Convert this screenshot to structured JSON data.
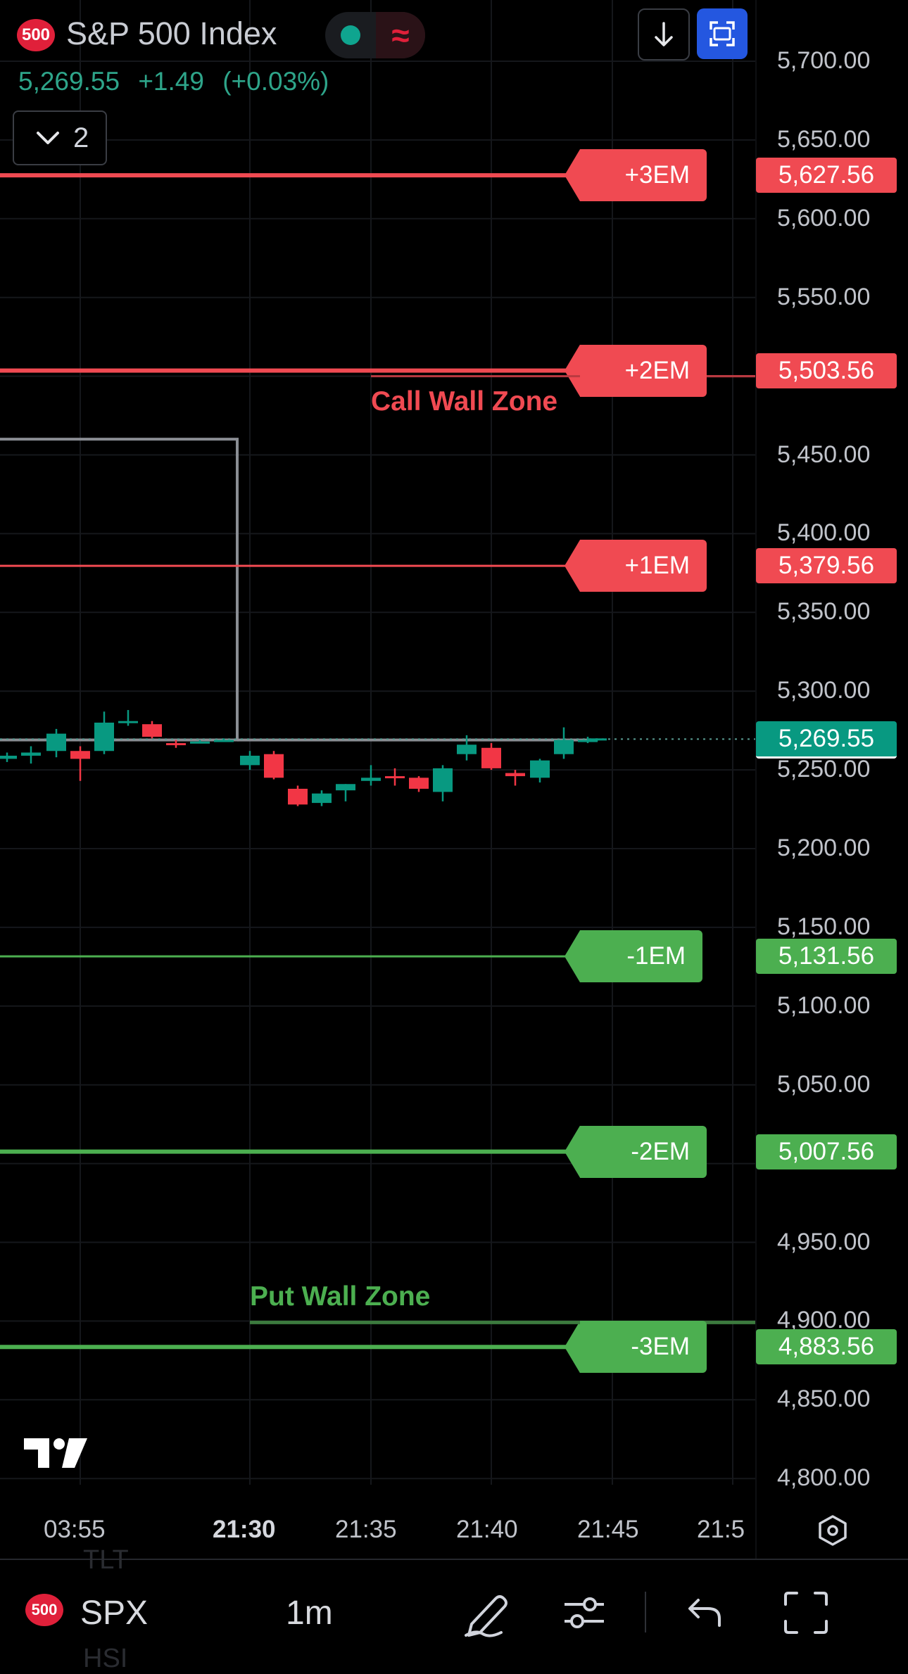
{
  "header": {
    "index_badge": "500",
    "title": "S&P 500 Index",
    "last_price": "5,269.55",
    "change": "+1.49",
    "change_pct": "(+0.03%)",
    "indicator_count": "2",
    "icons": [
      "wave-icon",
      "download-arrow-icon",
      "fullscreen-icon",
      "chevron-down-icon"
    ]
  },
  "colors": {
    "up": "#089981",
    "down": "#f23645",
    "red_line": "#f04a52",
    "green_line": "#4caf50",
    "accent_blue": "#2457e0"
  },
  "chart_data": {
    "type": "candlestick",
    "y_axis_ticks": [
      "5,700.00",
      "5,650.00",
      "5,600.00",
      "5,550.00",
      "5,450.00",
      "5,400.00",
      "5,350.00",
      "5,300.00",
      "5,250.00",
      "5,200.00",
      "5,150.00",
      "5,100.00",
      "5,050.00",
      "4,950.00",
      "4,900.00",
      "4,850.00",
      "4,800.00"
    ],
    "ylim": [
      4790,
      5720
    ],
    "x_axis_ticks": [
      {
        "label": "03:55",
        "bold": false
      },
      {
        "label": "21:30",
        "bold": true
      },
      {
        "label": "21:35",
        "bold": false
      },
      {
        "label": "21:40",
        "bold": false
      },
      {
        "label": "21:45",
        "bold": false
      },
      {
        "label": "21:5",
        "bold": false
      }
    ],
    "current_price": {
      "value": 5269.55,
      "label": "5,269.55"
    },
    "levels": [
      {
        "name": "+3EM",
        "value": 5627.56,
        "label": "5,627.56",
        "color": "red"
      },
      {
        "name": "+2EM",
        "value": 5503.56,
        "label": "5,503.56",
        "color": "red"
      },
      {
        "name": "+1EM",
        "value": 5379.56,
        "label": "5,379.56",
        "color": "red"
      },
      {
        "name": "-1EM",
        "value": 5131.56,
        "label": "5,131.56",
        "color": "green"
      },
      {
        "name": "-2EM",
        "value": 5007.56,
        "label": "5,007.56",
        "color": "green"
      },
      {
        "name": "-3EM",
        "value": 4883.56,
        "label": "4,883.56",
        "color": "green"
      }
    ],
    "zones": [
      {
        "name": "Call Wall Zone",
        "value": 5500,
        "color": "red"
      },
      {
        "name": "Put Wall Zone",
        "value": 4900,
        "color": "green"
      }
    ],
    "session_box": {
      "top": 5460,
      "bottom": 5269
    },
    "candles": [
      {
        "o": 5257,
        "h": 5261,
        "l": 5255,
        "c": 5259
      },
      {
        "o": 5259,
        "h": 5265,
        "l": 5254,
        "c": 5261
      },
      {
        "o": 5262,
        "h": 5276,
        "l": 5258,
        "c": 5273
      },
      {
        "o": 5262,
        "h": 5265,
        "l": 5243,
        "c": 5257
      },
      {
        "o": 5262,
        "h": 5287,
        "l": 5260,
        "c": 5280
      },
      {
        "o": 5280,
        "h": 5288,
        "l": 5278,
        "c": 5281
      },
      {
        "o": 5279,
        "h": 5281,
        "l": 5270,
        "c": 5271
      },
      {
        "o": 5267,
        "h": 5269,
        "l": 5264,
        "c": 5266
      },
      {
        "o": 5268,
        "h": 5269,
        "l": 5267,
        "c": 5268
      },
      {
        "o": 5269,
        "h": 5270,
        "l": 5268,
        "c": 5269
      },
      {
        "o": 5253,
        "h": 5262,
        "l": 5250,
        "c": 5259
      },
      {
        "o": 5260,
        "h": 5262,
        "l": 5244,
        "c": 5245
      },
      {
        "o": 5238,
        "h": 5240,
        "l": 5227,
        "c": 5228
      },
      {
        "o": 5229,
        "h": 5237,
        "l": 5227,
        "c": 5235
      },
      {
        "o": 5237,
        "h": 5241,
        "l": 5230,
        "c": 5241
      },
      {
        "o": 5243,
        "h": 5253,
        "l": 5240,
        "c": 5245
      },
      {
        "o": 5246,
        "h": 5251,
        "l": 5240,
        "c": 5245
      },
      {
        "o": 5245,
        "h": 5246,
        "l": 5236,
        "c": 5238
      },
      {
        "o": 5236,
        "h": 5253,
        "l": 5230,
        "c": 5251
      },
      {
        "o": 5260,
        "h": 5272,
        "l": 5256,
        "c": 5266
      },
      {
        "o": 5264,
        "h": 5267,
        "l": 5250,
        "c": 5251
      },
      {
        "o": 5248,
        "h": 5250,
        "l": 5240,
        "c": 5246
      },
      {
        "o": 5245,
        "h": 5257,
        "l": 5242,
        "c": 5256
      },
      {
        "o": 5260,
        "h": 5277,
        "l": 5257,
        "c": 5269
      },
      {
        "o": 5269,
        "h": 5271,
        "l": 5267,
        "c": 5269
      },
      {
        "o": 5269,
        "h": 5270,
        "l": 5268,
        "c": 5270
      }
    ]
  },
  "bottom_bar": {
    "symbol_badge": "500",
    "symbol": "SPX",
    "interval": "1m",
    "behind_text_top": "TLT",
    "behind_text_bottom": "HSI",
    "icons": [
      "pencil-draw-icon",
      "indicator-settings-icon",
      "undo-icon",
      "fullscreen-frame-icon",
      "settings-hexagon-icon"
    ]
  }
}
